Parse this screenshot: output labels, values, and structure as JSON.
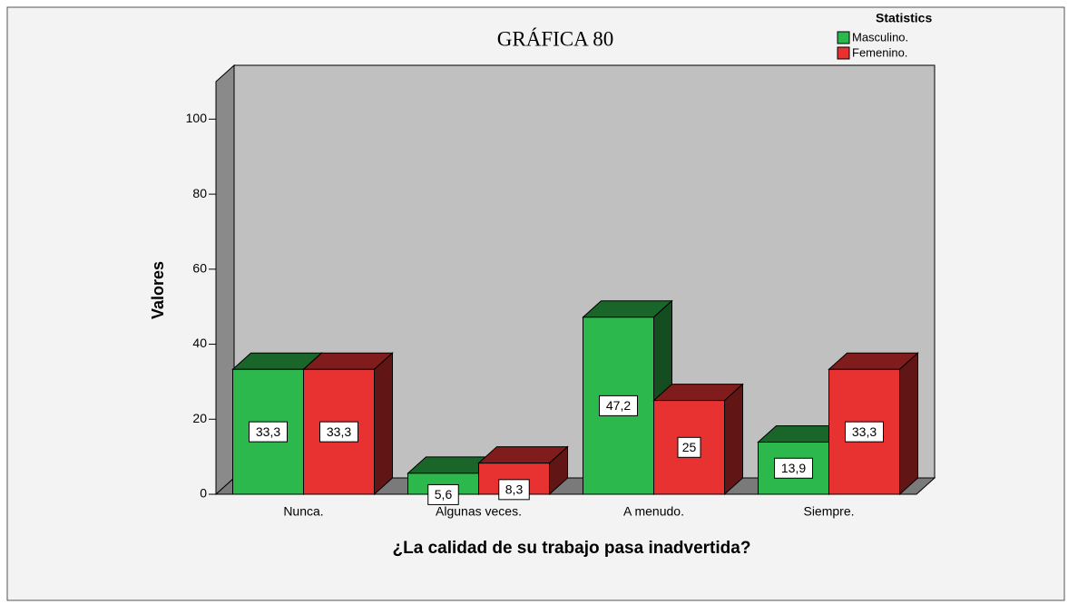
{
  "chart_data": {
    "type": "bar3d",
    "title": "GRÁFICA 80",
    "legend_title": "Statistics",
    "ylabel": "Valores",
    "xlabel": "¿La calidad de su trabajo pasa inadvertida?",
    "categories": [
      "Nunca.",
      "Algunas veces.",
      "A menudo.",
      "Siempre."
    ],
    "series": [
      {
        "name": "Masculino.",
        "color": "#2db84d",
        "values": [
          33.3,
          5.6,
          47.2,
          13.9
        ],
        "value_labels": [
          "33,3",
          "5,6",
          "47,2",
          "13,9"
        ]
      },
      {
        "name": "Femenino.",
        "color": "#e83232",
        "values": [
          33.3,
          8.3,
          25,
          33.3
        ],
        "value_labels": [
          "33,3",
          "8,3",
          "25",
          "33,3"
        ]
      }
    ],
    "ylim": [
      0,
      110
    ],
    "yticks": [
      0,
      20,
      40,
      60,
      80,
      100
    ],
    "grid": false,
    "legend": "top-right"
  }
}
